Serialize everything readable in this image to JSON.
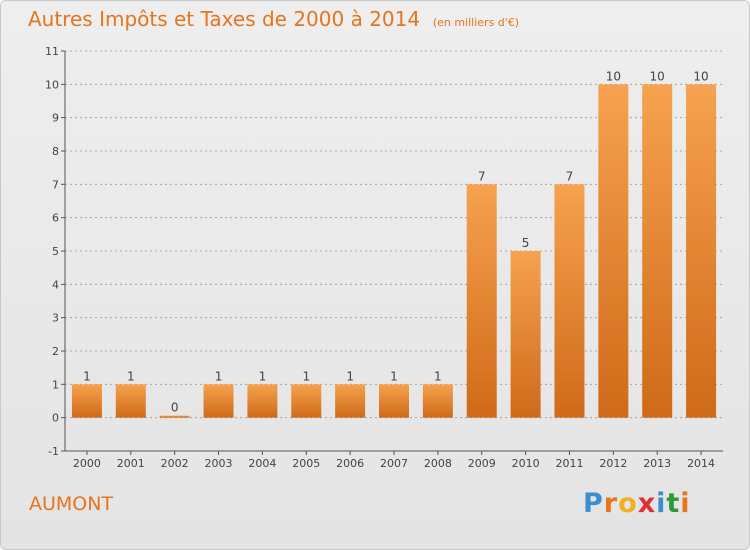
{
  "title": {
    "main": "Autres Impôts et Taxes de 2000 à 2014",
    "unit": "(en milliers d'€)"
  },
  "commune": "AUMONT",
  "logo": {
    "text": "Proxiti",
    "letter_colors": [
      "#3a8fd0",
      "#e8741c",
      "#f0b020",
      "#e03030",
      "#3a8fd0",
      "#2e9a3a",
      "#e8741c"
    ]
  },
  "colors": {
    "title": "#e8741c",
    "bar_top": "#f6a24e",
    "bar_bottom": "#cf6a1a",
    "axis": "#555555",
    "grid": "#999999",
    "label": "#444444"
  },
  "chart_data": {
    "type": "bar",
    "categories": [
      "2000",
      "2001",
      "2002",
      "2003",
      "2004",
      "2005",
      "2006",
      "2007",
      "2008",
      "2009",
      "2010",
      "2011",
      "2012",
      "2013",
      "2014"
    ],
    "values": [
      1,
      1,
      0,
      1,
      1,
      1,
      1,
      1,
      1,
      7,
      5,
      7,
      10,
      10,
      10
    ],
    "title": "Autres Impôts et Taxes de 2000 à 2014",
    "subtitle": "(en milliers d'€)",
    "xlabel": "",
    "ylabel": "",
    "ylim": [
      -1,
      11
    ],
    "yticks": [
      "-1",
      "0",
      "1",
      "2",
      "3",
      "4",
      "5",
      "6",
      "7",
      "8",
      "9",
      "10",
      "11"
    ],
    "grid": "horizontal dashed",
    "legend": "none"
  }
}
